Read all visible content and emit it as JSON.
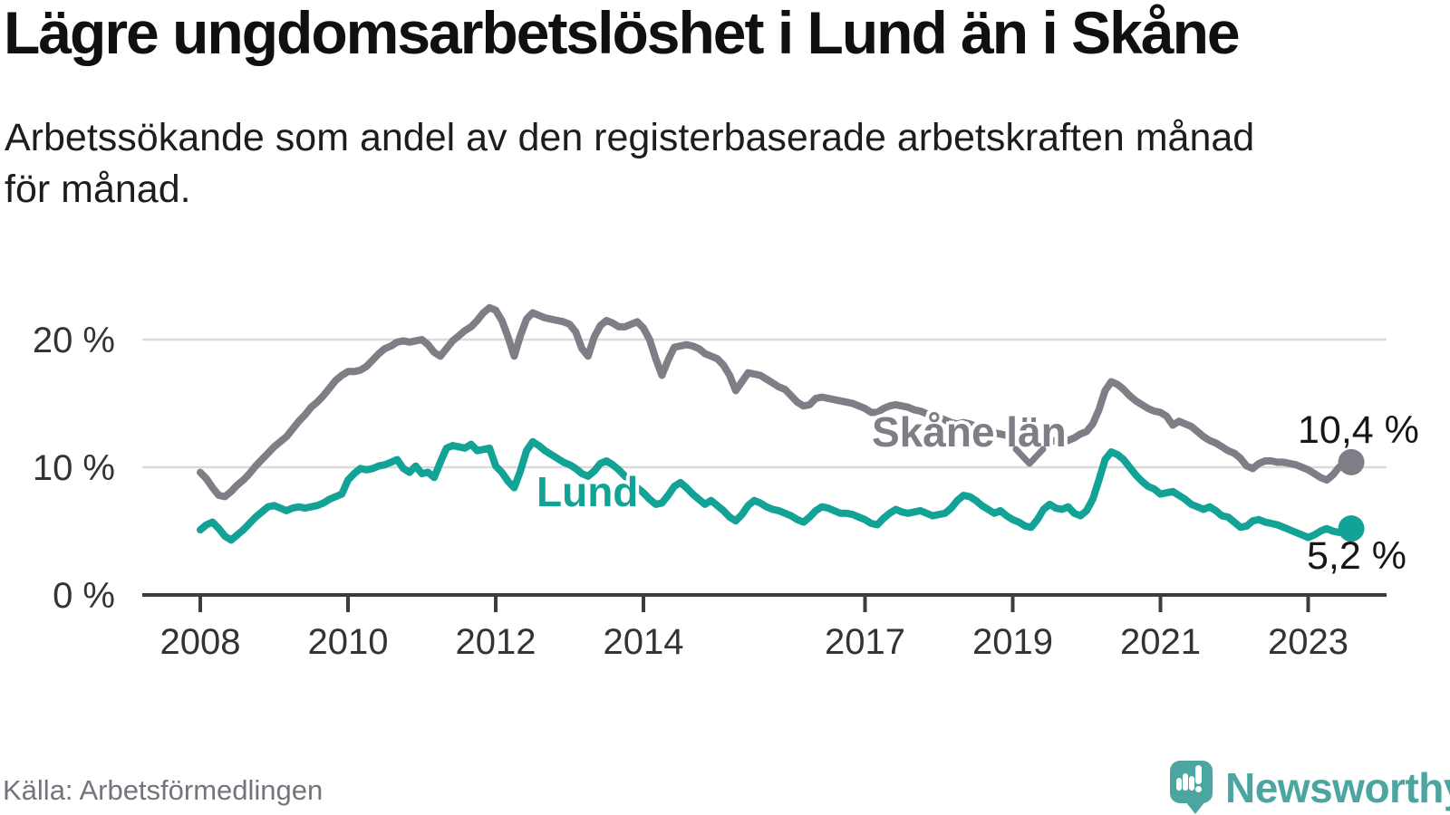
{
  "header": {
    "title": "Lägre ungdomsarbetslöshet i Lund än i Skåne",
    "subtitle_line1": "Arbetssökande som andel av den registerbaserade arbetskraften månad",
    "subtitle_line2": "för månad."
  },
  "chart_data": {
    "type": "line",
    "title": "Lägre ungdomsarbetslöshet i Lund än i Skåne",
    "ylabel": "Arbetssökande som andel av den registerbaserade arbetskraften",
    "unit": "%",
    "grid": "horizontal",
    "xlim": [
      2008,
      2023.75
    ],
    "ylim": [
      0,
      24
    ],
    "x_start_year": 2008,
    "x_step_months": 1,
    "x_ticks": [
      {
        "year": 2008,
        "label": "2008"
      },
      {
        "year": 2010,
        "label": "2010"
      },
      {
        "year": 2012,
        "label": "2012"
      },
      {
        "year": 2014,
        "label": "2014"
      },
      {
        "year": 2017,
        "label": "2017"
      },
      {
        "year": 2019,
        "label": "2019"
      },
      {
        "year": 2021,
        "label": "2021"
      },
      {
        "year": 2023,
        "label": "2023"
      }
    ],
    "y_ticks": [
      {
        "value": 0,
        "label": "0 %"
      },
      {
        "value": 10,
        "label": "10 %"
      },
      {
        "value": 20,
        "label": "20 %"
      }
    ],
    "series": [
      {
        "name": "Skåne län",
        "slug": "skane-lan",
        "color": "#7e7e87",
        "end_value": 10.4,
        "end_label": "10,4 %",
        "values": [
          9.6,
          9.1,
          8.4,
          7.8,
          7.7,
          8.1,
          8.6,
          9.0,
          9.5,
          10.1,
          10.6,
          11.1,
          11.6,
          12.0,
          12.4,
          13.0,
          13.6,
          14.1,
          14.7,
          15.1,
          15.6,
          16.2,
          16.8,
          17.2,
          17.5,
          17.5,
          17.6,
          17.9,
          18.4,
          18.9,
          19.3,
          19.5,
          19.8,
          19.9,
          19.8,
          19.9,
          20.0,
          19.6,
          19.0,
          18.7,
          19.3,
          19.9,
          20.3,
          20.7,
          21.0,
          21.5,
          22.1,
          22.5,
          22.3,
          21.5,
          20.2,
          18.7,
          20.3,
          21.6,
          22.1,
          21.9,
          21.7,
          21.6,
          21.5,
          21.4,
          21.2,
          20.6,
          19.3,
          18.7,
          20.2,
          21.1,
          21.5,
          21.3,
          21.0,
          21.0,
          21.2,
          21.4,
          20.9,
          20.0,
          18.5,
          17.2,
          18.4,
          19.4,
          19.5,
          19.6,
          19.5,
          19.3,
          18.9,
          18.7,
          18.5,
          18.0,
          17.2,
          16.0,
          16.7,
          17.4,
          17.3,
          17.2,
          16.9,
          16.6,
          16.3,
          16.1,
          15.6,
          15.1,
          14.8,
          14.9,
          15.4,
          15.5,
          15.4,
          15.3,
          15.2,
          15.1,
          15.0,
          14.8,
          14.6,
          14.3,
          14.3,
          14.6,
          14.8,
          14.9,
          14.8,
          14.7,
          14.5,
          14.4,
          14.2,
          14.1,
          13.9,
          13.7,
          13.5,
          13.4,
          13.5,
          13.4,
          13.2,
          13.0,
          12.9,
          12.7,
          12.6,
          12.5,
          12.4,
          12.2,
          12.1,
          12.0,
          11.9,
          12.0,
          12.0,
          12.1,
          12.0,
          12.1,
          12.3,
          12.6,
          12.8,
          13.4,
          14.5,
          16.0,
          16.7,
          16.5,
          16.1,
          15.6,
          15.2,
          14.9,
          14.6,
          14.4,
          14.3,
          14.0,
          13.3,
          13.6,
          13.4,
          13.2,
          12.8,
          12.4,
          12.1,
          11.9,
          11.6,
          11.3,
          11.1,
          10.7,
          10.1,
          9.9,
          10.3,
          10.5,
          10.5,
          10.4,
          10.4,
          10.3,
          10.2,
          10.0,
          9.8,
          9.5,
          9.2,
          9.0,
          9.4,
          10.0,
          10.3,
          10.4
        ]
      },
      {
        "name": "Lund",
        "slug": "lund",
        "color": "#13a296",
        "end_value": 5.2,
        "end_label": "5,2 %",
        "values": [
          5.1,
          5.5,
          5.7,
          5.2,
          4.6,
          4.3,
          4.7,
          5.1,
          5.6,
          6.1,
          6.5,
          6.9,
          7.0,
          6.8,
          6.6,
          6.8,
          6.9,
          6.8,
          6.9,
          7.0,
          7.2,
          7.5,
          7.7,
          7.9,
          9.0,
          9.5,
          9.9,
          9.8,
          9.9,
          10.1,
          10.2,
          10.4,
          10.6,
          9.9,
          9.6,
          10.1,
          9.5,
          9.6,
          9.2,
          10.4,
          11.5,
          11.7,
          11.6,
          11.5,
          11.8,
          11.3,
          11.4,
          11.5,
          10.1,
          9.6,
          8.9,
          8.4,
          9.7,
          11.3,
          12.0,
          11.7,
          11.3,
          11.0,
          10.7,
          10.4,
          10.2,
          9.9,
          9.5,
          9.3,
          9.7,
          10.3,
          10.5,
          10.2,
          9.8,
          9.3,
          8.9,
          8.4,
          8.0,
          7.5,
          7.1,
          7.2,
          7.8,
          8.5,
          8.8,
          8.4,
          7.9,
          7.5,
          7.1,
          7.4,
          7.0,
          6.6,
          6.1,
          5.8,
          6.3,
          7.0,
          7.4,
          7.2,
          6.9,
          6.7,
          6.6,
          6.4,
          6.2,
          5.9,
          5.7,
          6.1,
          6.6,
          6.9,
          6.8,
          6.6,
          6.4,
          6.4,
          6.3,
          6.1,
          5.9,
          5.6,
          5.5,
          6.0,
          6.4,
          6.7,
          6.5,
          6.4,
          6.5,
          6.6,
          6.4,
          6.2,
          6.3,
          6.4,
          6.8,
          7.4,
          7.8,
          7.7,
          7.4,
          7.0,
          6.7,
          6.4,
          6.6,
          6.2,
          5.9,
          5.7,
          5.4,
          5.3,
          5.9,
          6.7,
          7.1,
          6.8,
          6.7,
          6.9,
          6.4,
          6.2,
          6.6,
          7.5,
          9.0,
          10.6,
          11.2,
          11.0,
          10.6,
          10.0,
          9.4,
          8.9,
          8.5,
          8.3,
          7.9,
          8.0,
          8.1,
          7.8,
          7.5,
          7.1,
          6.9,
          6.7,
          6.9,
          6.6,
          6.2,
          6.1,
          5.7,
          5.3,
          5.4,
          5.8,
          5.9,
          5.7,
          5.6,
          5.5,
          5.3,
          5.1,
          4.9,
          4.7,
          4.5,
          4.7,
          5.0,
          5.2,
          5.0,
          4.9,
          5.1,
          5.2
        ]
      }
    ]
  },
  "annotations": {
    "skane_label": "Skåne län",
    "lund_label": "Lund",
    "skane_end_value": "10,4 %",
    "lund_end_value": "5,2 %"
  },
  "footer": {
    "source": "Källa: Arbetsförmedlingen",
    "brand": "Newsworthy",
    "brand_color": "#4ba5a1"
  }
}
